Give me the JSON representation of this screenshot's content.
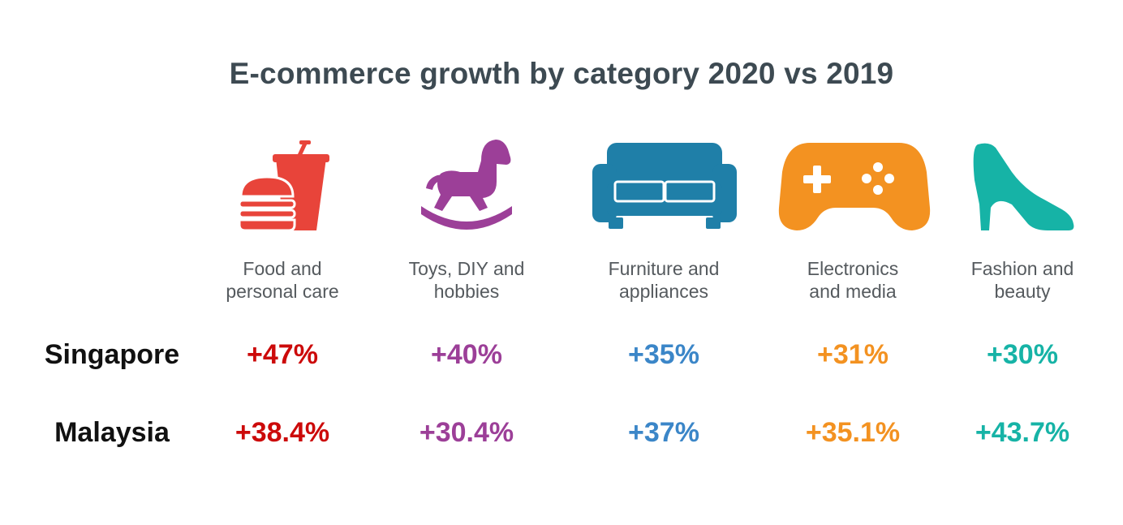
{
  "chart_data": {
    "type": "table",
    "title": "E-commerce growth by category 2020 vs 2019",
    "categories": [
      {
        "line1": "Food and",
        "line2": "personal care",
        "icon": "burger-drink-icon",
        "color": "#e8443a"
      },
      {
        "line1": "Toys, DIY and",
        "line2": "hobbies",
        "icon": "rocking-horse-icon",
        "color": "#9c3f98"
      },
      {
        "line1": "Furniture and",
        "line2": "appliances",
        "icon": "sofa-icon",
        "color": "#1f7fa8"
      },
      {
        "line1": "Electronics",
        "line2": "and media",
        "icon": "gamepad-icon",
        "color": "#f39221"
      },
      {
        "line1": "Fashion and",
        "line2": "beauty",
        "icon": "high-heel-icon",
        "color": "#16b3a6"
      }
    ],
    "value_colors": [
      "#cc0a0a",
      "#9c3f98",
      "#3b86c8",
      "#f39221",
      "#16b3a6"
    ],
    "series": [
      {
        "name": "Singapore",
        "values": [
          "+47%",
          "+40%",
          "+35%",
          "+31%",
          "+30%"
        ]
      },
      {
        "name": "Malaysia",
        "values": [
          "+38.4%",
          "+30.4%",
          "+37%",
          "+35.1%",
          "+43.7%"
        ]
      }
    ]
  }
}
